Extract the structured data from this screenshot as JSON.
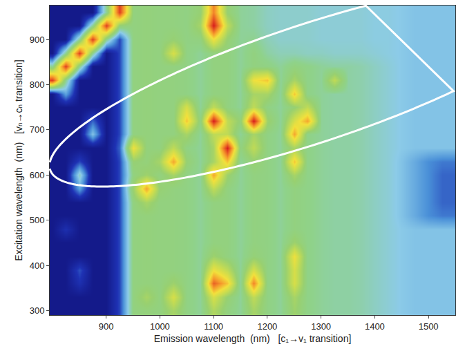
{
  "chart_data": {
    "type": "heatmap",
    "x_label": "Emission wavelength  (nm)   [c₁→v₁ transition]",
    "y_label": "Excitation wavelength  (nm)   [vₙ→cₙ transition]",
    "xlim": [
      795,
      1550
    ],
    "ylim": [
      290,
      975
    ],
    "xticks": [
      900,
      1000,
      1100,
      1200,
      1300,
      1400,
      1500
    ],
    "yticks": [
      300,
      400,
      500,
      600,
      700,
      800,
      900
    ],
    "x": [
      800,
      825,
      850,
      875,
      900,
      925,
      950,
      975,
      1000,
      1025,
      1050,
      1075,
      1100,
      1125,
      1150,
      1175,
      1200,
      1225,
      1250,
      1275,
      1300,
      1325,
      1350,
      1375,
      1400,
      1425,
      1450,
      1475,
      1500,
      1525,
      1550
    ],
    "y": [
      300,
      330,
      360,
      390,
      420,
      450,
      480,
      510,
      540,
      570,
      600,
      630,
      660,
      690,
      720,
      750,
      780,
      810,
      840,
      870,
      900,
      930,
      960
    ],
    "z": [
      [
        0.4,
        0.4,
        0.4,
        0.4,
        0.4,
        1.5,
        4.3,
        4.4,
        4.3,
        5.0,
        4.2,
        3.9,
        5.2,
        4.3,
        3.9,
        5.0,
        4.2,
        3.9,
        4.8,
        4.1,
        3.9,
        3.8,
        3.8,
        3.7,
        3.5,
        3.3,
        3.1,
        3.0,
        3.0,
        3.0,
        3.0
      ],
      [
        0.4,
        0.4,
        0.4,
        0.4,
        0.4,
        1.5,
        4.3,
        5.0,
        4.3,
        6.0,
        4.2,
        3.9,
        6.0,
        4.6,
        3.9,
        5.5,
        4.2,
        3.9,
        5.0,
        4.1,
        3.9,
        3.8,
        3.8,
        3.7,
        3.5,
        3.3,
        3.1,
        3.0,
        3.0,
        3.0,
        3.0
      ],
      [
        0.4,
        0.4,
        1.2,
        0.4,
        0.4,
        1.5,
        4.3,
        4.4,
        4.3,
        4.8,
        4.2,
        3.9,
        8.5,
        7.0,
        3.9,
        8.0,
        4.2,
        3.9,
        6.0,
        4.1,
        3.9,
        3.8,
        3.8,
        3.7,
        3.5,
        3.3,
        3.1,
        3.0,
        3.0,
        3.0,
        3.0
      ],
      [
        0.4,
        0.4,
        1.6,
        0.4,
        0.4,
        1.5,
        4.3,
        4.4,
        4.3,
        4.3,
        4.2,
        3.9,
        6.5,
        5.5,
        3.9,
        6.0,
        4.2,
        3.9,
        6.0,
        4.1,
        3.9,
        3.8,
        3.8,
        3.7,
        3.5,
        3.3,
        3.1,
        3.0,
        3.0,
        3.0,
        3.0
      ],
      [
        0.4,
        0.4,
        0.4,
        0.4,
        0.4,
        1.5,
        4.3,
        4.4,
        4.3,
        4.3,
        4.2,
        3.9,
        4.8,
        4.3,
        3.9,
        4.5,
        4.2,
        3.9,
        6.5,
        4.1,
        3.9,
        3.8,
        3.8,
        3.7,
        3.5,
        3.3,
        3.1,
        3.0,
        3.0,
        3.0,
        3.0
      ],
      [
        0.4,
        0.4,
        0.4,
        0.4,
        0.4,
        1.5,
        4.3,
        4.4,
        4.3,
        4.3,
        4.2,
        3.9,
        4.3,
        4.3,
        3.9,
        4.3,
        4.2,
        3.9,
        4.8,
        4.1,
        3.9,
        3.8,
        3.8,
        3.7,
        3.5,
        3.3,
        3.1,
        3.0,
        3.0,
        3.0,
        3.0
      ],
      [
        0.4,
        1.2,
        0.4,
        0.4,
        0.4,
        1.5,
        4.3,
        4.4,
        4.3,
        4.3,
        4.2,
        3.9,
        4.3,
        4.3,
        3.9,
        4.3,
        4.2,
        3.9,
        4.3,
        4.1,
        3.9,
        3.8,
        3.8,
        3.7,
        3.5,
        3.3,
        3.1,
        3.0,
        3.0,
        3.0,
        3.0
      ],
      [
        0.4,
        0.4,
        0.4,
        0.4,
        0.4,
        1.5,
        4.3,
        4.4,
        4.3,
        4.3,
        4.2,
        3.9,
        4.3,
        4.3,
        3.9,
        4.3,
        4.2,
        3.9,
        4.3,
        4.1,
        3.9,
        3.8,
        3.8,
        3.7,
        3.5,
        3.3,
        3.0,
        2.6,
        2.2,
        2.0,
        2.0
      ],
      [
        0.4,
        0.4,
        0.4,
        0.4,
        0.4,
        1.5,
        4.3,
        5.0,
        4.3,
        4.3,
        4.2,
        3.9,
        4.3,
        4.3,
        3.9,
        4.3,
        4.2,
        3.9,
        4.3,
        4.1,
        3.9,
        3.8,
        3.8,
        3.7,
        3.5,
        3.3,
        3.0,
        2.6,
        2.2,
        1.8,
        1.8
      ],
      [
        0.4,
        0.4,
        2.5,
        0.4,
        0.4,
        1.5,
        4.8,
        7.5,
        4.6,
        4.3,
        4.2,
        3.9,
        5.5,
        4.3,
        3.9,
        4.3,
        4.2,
        3.9,
        4.3,
        4.1,
        3.9,
        3.8,
        3.8,
        3.7,
        3.5,
        3.3,
        3.0,
        2.6,
        2.2,
        1.8,
        1.8
      ],
      [
        0.4,
        0.4,
        3.5,
        0.4,
        0.4,
        1.5,
        4.3,
        4.8,
        4.3,
        5.0,
        4.2,
        3.9,
        7.5,
        4.8,
        3.9,
        4.3,
        4.2,
        3.9,
        5.0,
        4.1,
        3.9,
        3.8,
        3.8,
        3.7,
        3.5,
        3.3,
        3.0,
        2.6,
        2.2,
        1.8,
        1.8
      ],
      [
        0.4,
        0.4,
        1.5,
        0.4,
        0.4,
        1.5,
        4.6,
        4.4,
        5.0,
        7.5,
        4.6,
        3.9,
        5.0,
        7.0,
        3.9,
        4.6,
        4.2,
        3.9,
        7.0,
        4.1,
        3.9,
        3.8,
        3.8,
        3.7,
        3.5,
        3.3,
        3.0,
        2.6,
        2.2,
        2.0,
        2.0
      ],
      [
        0.4,
        0.4,
        0.4,
        0.4,
        0.4,
        1.8,
        6.5,
        4.4,
        4.3,
        5.5,
        4.2,
        3.9,
        5.0,
        9.5,
        4.3,
        5.5,
        4.2,
        3.9,
        5.0,
        4.1,
        3.9,
        3.8,
        3.8,
        3.7,
        3.5,
        3.3,
        3.1,
        3.0,
        3.0,
        3.0,
        3.0
      ],
      [
        0.4,
        0.4,
        0.4,
        3.0,
        0.4,
        1.5,
        4.3,
        4.4,
        4.3,
        4.3,
        5.0,
        3.9,
        5.5,
        5.5,
        3.9,
        5.0,
        4.2,
        3.9,
        7.5,
        4.1,
        3.9,
        3.8,
        3.8,
        3.7,
        3.5,
        3.3,
        3.1,
        3.0,
        3.0,
        3.0,
        3.0
      ],
      [
        0.4,
        0.4,
        0.4,
        1.8,
        0.4,
        1.5,
        4.3,
        4.4,
        4.3,
        4.3,
        7.0,
        4.3,
        9.5,
        5.5,
        4.5,
        9.5,
        4.8,
        3.9,
        6.0,
        7.5,
        3.9,
        3.8,
        3.8,
        3.7,
        3.5,
        3.3,
        3.1,
        3.0,
        3.0,
        3.0,
        3.0
      ],
      [
        0.4,
        0.4,
        0.4,
        0.4,
        0.4,
        1.5,
        4.3,
        4.4,
        4.3,
        4.3,
        6.0,
        3.9,
        5.5,
        4.3,
        3.9,
        5.5,
        4.2,
        3.9,
        4.6,
        5.5,
        3.9,
        3.8,
        3.8,
        3.7,
        3.5,
        3.3,
        3.1,
        3.0,
        3.0,
        3.0,
        3.0
      ],
      [
        0.4,
        2.5,
        0.4,
        0.4,
        0.4,
        1.5,
        4.3,
        4.4,
        4.3,
        4.3,
        4.2,
        3.9,
        4.3,
        4.3,
        3.9,
        5.0,
        5.0,
        3.9,
        7.0,
        4.1,
        3.9,
        3.8,
        3.8,
        3.7,
        3.5,
        3.3,
        3.1,
        3.0,
        3.0,
        3.0,
        3.0
      ],
      [
        9.0,
        4.0,
        0.4,
        0.4,
        0.4,
        1.5,
        4.3,
        4.4,
        4.3,
        4.3,
        4.2,
        3.9,
        4.3,
        4.3,
        3.9,
        6.5,
        7.0,
        3.9,
        5.0,
        4.1,
        3.9,
        5.5,
        3.8,
        3.7,
        3.5,
        3.3,
        3.1,
        3.0,
        3.0,
        3.0,
        3.0
      ],
      [
        4.0,
        9.0,
        4.0,
        0.4,
        0.4,
        1.5,
        4.3,
        4.4,
        4.3,
        4.3,
        4.2,
        3.9,
        4.3,
        4.3,
        3.9,
        4.3,
        4.2,
        3.9,
        4.3,
        4.1,
        3.9,
        3.8,
        3.8,
        3.7,
        3.5,
        3.3,
        3.1,
        3.0,
        3.0,
        3.0,
        3.0
      ],
      [
        0.4,
        4.0,
        9.0,
        4.0,
        0.4,
        1.5,
        4.3,
        4.4,
        4.3,
        6.0,
        4.2,
        3.9,
        4.3,
        4.3,
        3.9,
        4.3,
        3.8,
        3.6,
        3.6,
        3.5,
        3.5,
        3.4,
        3.4,
        3.4,
        3.3,
        3.2,
        3.1,
        3.0,
        3.0,
        3.0,
        3.0
      ],
      [
        0.4,
        0.4,
        4.0,
        9.0,
        4.0,
        1.5,
        4.3,
        4.4,
        4.3,
        4.6,
        4.2,
        4.3,
        6.5,
        4.6,
        3.9,
        4.0,
        3.6,
        3.4,
        3.4,
        3.4,
        3.3,
        3.3,
        3.3,
        3.3,
        3.2,
        3.2,
        3.1,
        3.0,
        3.0,
        3.0,
        3.0
      ],
      [
        0.4,
        0.4,
        0.4,
        4.0,
        9.0,
        4.5,
        4.3,
        4.4,
        4.3,
        4.3,
        4.2,
        5.0,
        9.5,
        5.5,
        3.9,
        3.8,
        3.5,
        3.4,
        3.4,
        3.4,
        3.3,
        3.3,
        3.3,
        3.3,
        3.2,
        3.2,
        3.1,
        3.0,
        3.0,
        3.0,
        3.0
      ],
      [
        0.4,
        0.4,
        0.4,
        0.4,
        4.0,
        9.0,
        4.3,
        4.4,
        4.3,
        4.3,
        4.2,
        4.6,
        8.0,
        4.6,
        3.9,
        3.8,
        3.5,
        3.4,
        3.4,
        3.4,
        3.3,
        3.3,
        3.3,
        3.3,
        3.2,
        3.2,
        3.1,
        3.0,
        3.0,
        3.0,
        3.0
      ]
    ]
  }
}
